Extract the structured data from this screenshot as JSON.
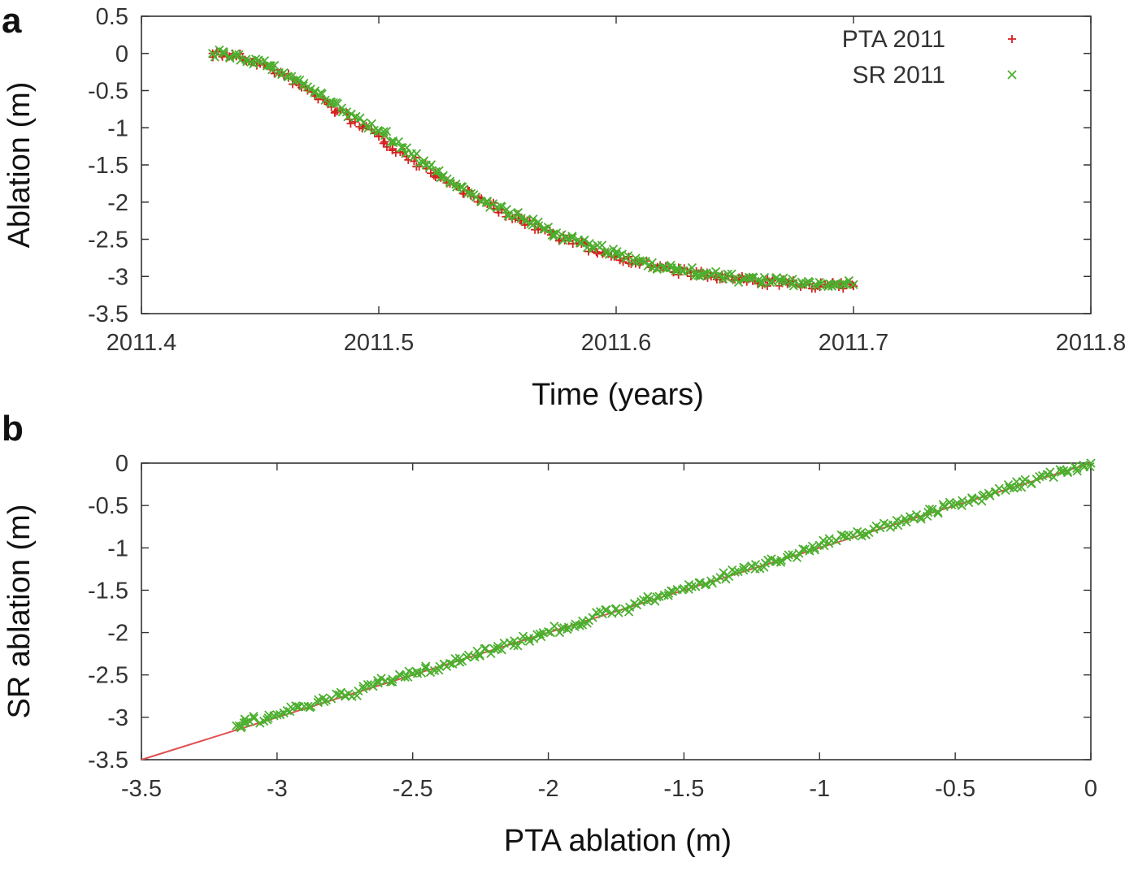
{
  "chart_data": [
    {
      "panel_label": "a",
      "type": "scatter",
      "xlabel": "Time (years)",
      "ylabel": "Ablation (m)",
      "xlim": [
        2011.4,
        2011.8
      ],
      "ylim": [
        -3.5,
        0.5
      ],
      "xticks": [
        "2011.4",
        "2011.5",
        "2011.6",
        "2011.7",
        "2011.8"
      ],
      "yticks": [
        "0.5",
        "0",
        "-0.5",
        "-1",
        "-1.5",
        "-2",
        "-2.5",
        "-3",
        "-3.5"
      ],
      "legend_position": "top-right",
      "grid": false,
      "series": [
        {
          "name": "PTA 2011",
          "marker": "+",
          "color": "#d62020",
          "x": [
            2011.43,
            2011.44,
            2011.45,
            2011.46,
            2011.47,
            2011.48,
            2011.49,
            2011.5,
            2011.51,
            2011.52,
            2011.53,
            2011.54,
            2011.55,
            2011.56,
            2011.57,
            2011.58,
            2011.59,
            2011.6,
            2011.61,
            2011.62,
            2011.63,
            2011.64,
            2011.65,
            2011.66,
            2011.67,
            2011.68,
            2011.69,
            2011.7
          ],
          "y": [
            0.0,
            -0.04,
            -0.14,
            -0.3,
            -0.5,
            -0.72,
            -0.92,
            -1.12,
            -1.33,
            -1.55,
            -1.75,
            -1.93,
            -2.1,
            -2.25,
            -2.38,
            -2.52,
            -2.63,
            -2.73,
            -2.82,
            -2.89,
            -2.95,
            -3.0,
            -3.04,
            -3.07,
            -3.09,
            -3.11,
            -3.12,
            -3.13
          ]
        },
        {
          "name": "SR 2011",
          "marker": "x",
          "color": "#4caf2e",
          "x": [
            2011.43,
            2011.44,
            2011.45,
            2011.46,
            2011.47,
            2011.48,
            2011.49,
            2011.5,
            2011.51,
            2011.52,
            2011.53,
            2011.54,
            2011.55,
            2011.56,
            2011.57,
            2011.58,
            2011.59,
            2011.6,
            2011.61,
            2011.62,
            2011.63,
            2011.64,
            2011.65,
            2011.66,
            2011.67,
            2011.68,
            2011.69,
            2011.7
          ],
          "y": [
            0.0,
            -0.03,
            -0.12,
            -0.26,
            -0.45,
            -0.66,
            -0.86,
            -1.05,
            -1.27,
            -1.5,
            -1.72,
            -1.9,
            -2.07,
            -2.22,
            -2.36,
            -2.49,
            -2.6,
            -2.7,
            -2.79,
            -2.87,
            -2.93,
            -2.98,
            -3.02,
            -3.05,
            -3.07,
            -3.09,
            -3.1,
            -3.11
          ]
        }
      ]
    },
    {
      "panel_label": "b",
      "type": "scatter",
      "xlabel": "PTA ablation (m)",
      "ylabel": "SR ablation (m)",
      "xlim": [
        -3.5,
        0
      ],
      "ylim": [
        -3.5,
        0
      ],
      "xticks": [
        "-3.5",
        "-3",
        "-2.5",
        "-2",
        "-1.5",
        "-1",
        "-0.5",
        "0"
      ],
      "yticks": [
        "0",
        "-0.5",
        "-1",
        "-1.5",
        "-2",
        "-2.5",
        "-3",
        "-3.5"
      ],
      "grid": false,
      "series": [
        {
          "marker": "line",
          "color": "#e05050",
          "x": [
            -3.5,
            0.0
          ],
          "y": [
            -3.5,
            0.0
          ]
        },
        {
          "marker": "x",
          "color": "#4caf2e",
          "x": [
            -3.15,
            -3.1,
            -3.0,
            -2.9,
            -2.8,
            -2.7,
            -2.6,
            -2.5,
            -2.4,
            -2.3,
            -2.2,
            -2.1,
            -2.0,
            -1.9,
            -1.8,
            -1.7,
            -1.6,
            -1.5,
            -1.4,
            -1.3,
            -1.2,
            -1.1,
            -1.0,
            -0.9,
            -0.8,
            -0.7,
            -0.6,
            -0.5,
            -0.4,
            -0.3,
            -0.2,
            -0.1,
            0.0
          ],
          "y": [
            -3.1,
            -3.05,
            -2.97,
            -2.87,
            -2.78,
            -2.69,
            -2.57,
            -2.48,
            -2.4,
            -2.29,
            -2.19,
            -2.1,
            -1.99,
            -1.9,
            -1.78,
            -1.7,
            -1.58,
            -1.48,
            -1.39,
            -1.28,
            -1.18,
            -1.08,
            -0.97,
            -0.87,
            -0.78,
            -0.69,
            -0.58,
            -0.49,
            -0.39,
            -0.29,
            -0.19,
            -0.09,
            0.0
          ]
        }
      ]
    }
  ]
}
